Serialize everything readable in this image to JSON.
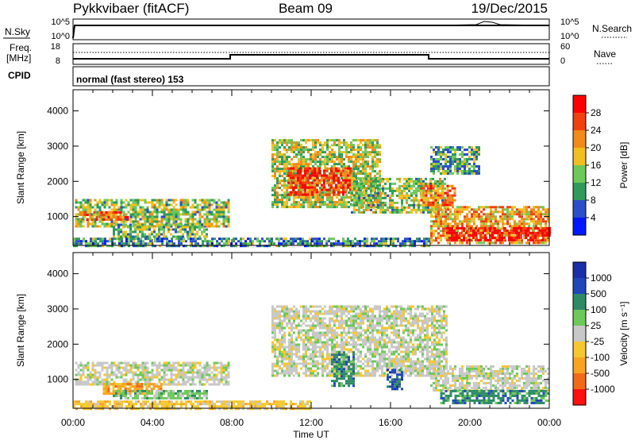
{
  "header": {
    "title": "Pykkvibaer (fitACF)",
    "beam": "Beam 09",
    "date": "19/Dec/2015"
  },
  "status_panels": {
    "nsky": {
      "label": "N.Sky",
      "left_ticks": [
        "10^5",
        "10^0"
      ],
      "right_ticks": [
        "10^5",
        "10^0"
      ],
      "right_label": "N.Search"
    },
    "freq": {
      "label_top": "Freq.",
      "label_bottom": "[MHz]",
      "left_ticks": [
        "18",
        "8"
      ],
      "right_ticks": [
        "60",
        "0"
      ],
      "right_label": "Nave"
    },
    "cpid": {
      "label": "CPID",
      "mode_text": "normal (fast stereo) 153"
    }
  },
  "colors": {
    "power": [
      "#0018ff",
      "#2b4fc8",
      "#2f9a5a",
      "#6ec85a",
      "#f0c020",
      "#f08a18",
      "#f04010",
      "#ff0000"
    ],
    "velocity": [
      "#ff1010",
      "#f06a18",
      "#f8a420",
      "#f5c830",
      "#c8c8c8",
      "#6ec85a",
      "#2e8a64",
      "#2046b8",
      "#1a2ea8"
    ]
  },
  "chart_data": [
    {
      "type": "heatmap",
      "parameter": "power",
      "ylabel": "Slant Range [km]",
      "x_range_hours": [
        0,
        24
      ],
      "ylim": [
        180,
        4600
      ],
      "y_ticks": [
        1000,
        2000,
        3000,
        4000
      ],
      "colorbar": {
        "label": "Power [dB]",
        "range": [
          0,
          32
        ],
        "ticks": [
          4,
          8,
          12,
          16,
          20,
          24,
          28
        ]
      },
      "regions": [
        {
          "t0": 0.1,
          "t1": 7.8,
          "r0": 750,
          "r1": 1500,
          "level": 0.45
        },
        {
          "t0": 0.3,
          "t1": 2.8,
          "r0": 900,
          "r1": 1150,
          "level": 0.8
        },
        {
          "t0": 2.0,
          "t1": 6.8,
          "r0": 450,
          "r1": 800,
          "level": 0.4
        },
        {
          "t0": 10.0,
          "t1": 15.5,
          "r0": 1300,
          "r1": 3200,
          "level": 0.5
        },
        {
          "t0": 10.8,
          "t1": 14.0,
          "r0": 1600,
          "r1": 2400,
          "level": 0.85
        },
        {
          "t0": 14.0,
          "t1": 18.8,
          "r0": 1100,
          "r1": 2100,
          "level": 0.45
        },
        {
          "t0": 17.5,
          "t1": 19.2,
          "r0": 1300,
          "r1": 1900,
          "level": 0.7
        },
        {
          "t0": 18.0,
          "t1": 24.0,
          "r0": 250,
          "r1": 1300,
          "level": 0.65
        },
        {
          "t0": 18.8,
          "t1": 24.0,
          "r0": 300,
          "r1": 700,
          "level": 0.95
        },
        {
          "t0": 18.0,
          "t1": 20.5,
          "r0": 2200,
          "r1": 3000,
          "level": 0.35
        },
        {
          "t0": 0.0,
          "t1": 18.0,
          "r0": 180,
          "r1": 400,
          "level": 0.3
        }
      ]
    },
    {
      "type": "heatmap",
      "parameter": "velocity",
      "ylabel": "Slant Range [km]",
      "xlabel": "Time UT",
      "x_range_hours": [
        0,
        24
      ],
      "x_ticks": [
        "00:00",
        "04:00",
        "08:00",
        "12:00",
        "16:00",
        "20:00",
        "00:00"
      ],
      "ylim": [
        180,
        4600
      ],
      "y_ticks": [
        1000,
        2000,
        3000,
        4000
      ],
      "colorbar": {
        "label": "Velocity [m s⁻¹]",
        "ticks": [
          "1000",
          "500",
          "100",
          "25",
          "-25",
          "-100",
          "-500",
          "-1000"
        ]
      },
      "regions": [
        {
          "t0": 0.1,
          "t1": 7.8,
          "r0": 850,
          "r1": 1500,
          "level": 4
        },
        {
          "t0": 1.5,
          "t1": 4.5,
          "r0": 600,
          "r1": 900,
          "level": 2
        },
        {
          "t0": 2.0,
          "t1": 6.8,
          "r0": 450,
          "r1": 700,
          "level": 5
        },
        {
          "t0": 10.0,
          "t1": 18.8,
          "r0": 1100,
          "r1": 3100,
          "level": 4
        },
        {
          "t0": 13.0,
          "t1": 14.2,
          "r0": 800,
          "r1": 1800,
          "level": 6
        },
        {
          "t0": 15.8,
          "t1": 16.6,
          "r0": 700,
          "r1": 1300,
          "level": 7
        },
        {
          "t0": 18.0,
          "t1": 24.0,
          "r0": 700,
          "r1": 1400,
          "level": 4
        },
        {
          "t0": 18.5,
          "t1": 24.0,
          "r0": 300,
          "r1": 700,
          "level": 6
        },
        {
          "t0": 0.0,
          "t1": 12.0,
          "r0": 180,
          "r1": 400,
          "level": 3
        }
      ]
    }
  ]
}
